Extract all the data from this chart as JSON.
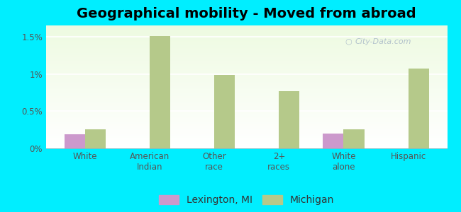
{
  "title": "Geographical mobility - Moved from abroad",
  "categories": [
    "White",
    "American\nIndian",
    "Other\nrace",
    "2+\nraces",
    "White\nalone",
    "Hispanic"
  ],
  "lexington_values": [
    0.19,
    0.0,
    0.0,
    0.0,
    0.2,
    0.0
  ],
  "michigan_values": [
    0.26,
    1.51,
    0.99,
    0.77,
    0.26,
    1.07
  ],
  "lexington_color": "#cc99cc",
  "michigan_color": "#b5c98a",
  "background_color": "#00eeff",
  "ylim": [
    0,
    1.65
  ],
  "yticks": [
    0.0,
    0.5,
    1.0,
    1.5
  ],
  "ytick_labels": [
    "0%",
    "0.5%",
    "1%",
    "1.5%"
  ],
  "bar_width": 0.32,
  "legend_labels": [
    "Lexington, MI",
    "Michigan"
  ],
  "title_fontsize": 14,
  "tick_fontsize": 8.5,
  "legend_fontsize": 10
}
